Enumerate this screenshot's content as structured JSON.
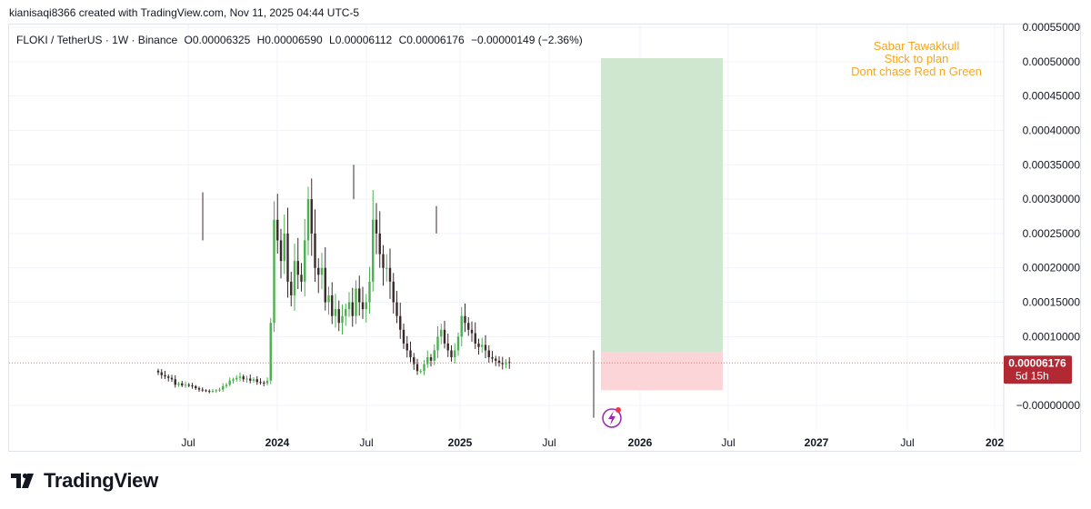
{
  "header": {
    "credit": "kianisaqi8366 created with TradingView.com, Nov 11, 2025 04:44 UTC-5"
  },
  "symbol": {
    "name": "FLOKI / TetherUS · 1W · Binance",
    "open": "O0.00006325",
    "high": "H0.00006590",
    "low": "L0.00006112",
    "close": "C0.00006176",
    "change": "−0.00000149 (−2.36%)"
  },
  "annotation": [
    "Sabar Tawakkull",
    "Stick to plan",
    "Dont chase Red n Green"
  ],
  "price_label": {
    "price": "0.00006176",
    "countdown": "5d 15h"
  },
  "brand": {
    "name": "TradingView"
  },
  "colors": {
    "up": "#4caf50",
    "down": "#3b2a2a",
    "annotation": "#f5a623",
    "price_tag": "#b22833",
    "target_zone": "#cfe6cf",
    "stop_zone": "#fbd5d7",
    "grid": "#f0f3fa"
  },
  "chart_data": {
    "type": "candlestick",
    "y_axis": {
      "ticks": [
        "0.00055000",
        "0.00050000",
        "0.00045000",
        "0.00040000",
        "0.00035000",
        "0.00030000",
        "0.00025000",
        "0.00020000",
        "0.00015000",
        "0.00010000",
        "−0.00000000"
      ],
      "range": [
        -3e-05,
        0.00056
      ]
    },
    "x_axis": {
      "ticks": [
        "Jul",
        "2024",
        "Jul",
        "2025",
        "Jul",
        "2026",
        "Jul",
        "2027",
        "Jul",
        "202"
      ]
    },
    "last_price": 6.176e-05,
    "position": {
      "entry": 7.75e-05,
      "target": 0.000505,
      "stop": 2.2e-05
    },
    "candles_approx_close_series": [
      4.8e-05,
      4.4e-05,
      4.2e-05,
      4e-05,
      3.8e-05,
      3e-05,
      3.2e-05,
      2.9e-05,
      3e-05,
      2.9e-05,
      2.8e-05,
      2.5e-05,
      2.3e-05,
      2.2e-05,
      2.1e-05,
      2e-05,
      2.1e-05,
      2.2e-05,
      2.3e-05,
      2.8e-05,
      3e-05,
      3.6e-05,
      3.8e-05,
      4e-05,
      4.2e-05,
      3.8e-05,
      3.9e-05,
      3.6e-05,
      3.8e-05,
      3.4e-05,
      3.3e-05,
      3.2e-05,
      3.6e-05,
      0.00012,
      0.00027,
      0.00024,
      0.00021,
      0.00025,
      0.00018,
      0.00016,
      0.00021,
      0.00019,
      0.00018,
      0.00024,
      0.0003,
      0.00025,
      0.0002,
      0.00019,
      0.0002,
      0.00015,
      0.00016,
      0.00013,
      0.00014,
      0.00012,
      0.00013,
      0.00014,
      0.00015,
      0.00013,
      0.00017,
      0.00015,
      0.00014,
      0.00015,
      0.00018,
      0.00027,
      0.00025,
      0.00022,
      0.0002,
      0.0002,
      0.00018,
      0.00015,
      0.00013,
      0.00011,
      9e-05,
      8e-05,
      7e-05,
      6e-05,
      5e-05,
      5e-05,
      6e-05,
      7e-05,
      6.5e-05,
      8e-05,
      0.0001,
      0.00011,
      9e-05,
      8e-05,
      7e-05,
      8e-05,
      0.0001,
      0.00013,
      0.00012,
      0.00011,
      0.000105,
      9e-05,
      8.5e-05,
      8.8e-05,
      8e-05,
      7e-05,
      6.8e-05,
      6.5e-05,
      6.2e-05,
      6e-05,
      6.3e-05,
      6.18e-05
    ]
  }
}
